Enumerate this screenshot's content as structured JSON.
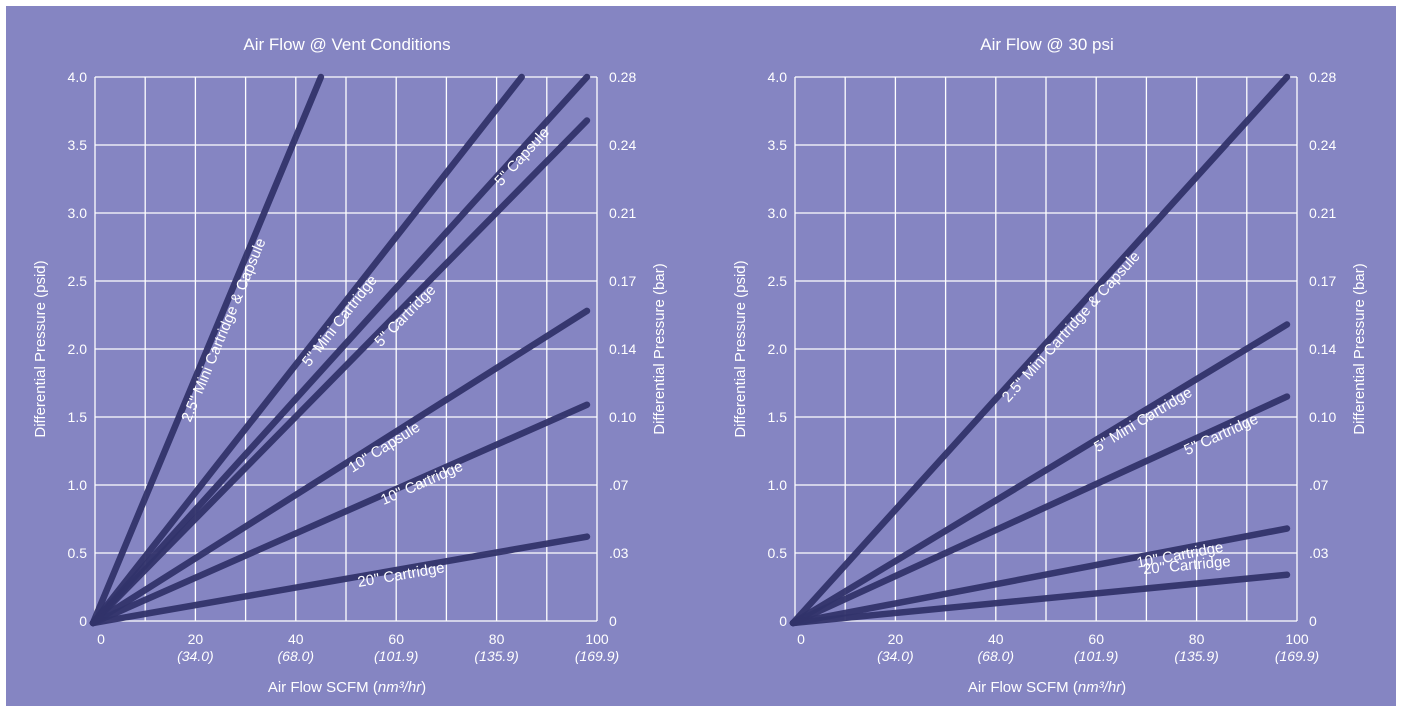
{
  "chart_data": [
    {
      "type": "line",
      "title": "Air Flow @ Vent Conditions",
      "xlabel": "Air Flow SCFM",
      "xlabel_unit": "nm³/hr",
      "ylabel": "Differential Pressure (psid)",
      "ylabel_right": "Differential Pressure (bar)",
      "xlim": [
        0,
        100
      ],
      "ylim": [
        0,
        4.0
      ],
      "grid": true,
      "x_ticks": [
        "0",
        "20",
        "40",
        "60",
        "80",
        "100"
      ],
      "x_ticks_secondary": [
        "",
        "(34.0)",
        "(68.0)",
        "(101.9)",
        "(135.9)",
        "(169.9)"
      ],
      "y_ticks": [
        "0",
        "0.5",
        "1.0",
        "1.5",
        "2.0",
        "2.5",
        "3.0",
        "3.5",
        "4.0"
      ],
      "y_ticks_right": [
        "0",
        ".03",
        ".07",
        "0.10",
        "0.14",
        "0.17",
        "0.21",
        "0.24",
        "0.28"
      ],
      "series": [
        {
          "name": "2.5\" Mini Cartridge & Capsule",
          "x": [
            0,
            45
          ],
          "y": [
            0,
            4.0
          ]
        },
        {
          "name": "5\" Mini Cartridge",
          "x": [
            0,
            85
          ],
          "y": [
            0,
            4.0
          ]
        },
        {
          "name": "5\" Capsule",
          "x": [
            0,
            98
          ],
          "y": [
            0,
            4.0
          ]
        },
        {
          "name": "5\" Cartridge",
          "x": [
            0,
            98
          ],
          "y": [
            0,
            3.68
          ]
        },
        {
          "name": "10\" Capsule",
          "x": [
            0,
            98
          ],
          "y": [
            0,
            2.28
          ]
        },
        {
          "name": "10\" Cartridge",
          "x": [
            0,
            98
          ],
          "y": [
            0,
            1.59
          ]
        },
        {
          "name": "20\" Cartridge",
          "x": [
            0,
            98
          ],
          "y": [
            0,
            0.62
          ]
        }
      ]
    },
    {
      "type": "line",
      "title": "Air Flow @ 30 psi",
      "xlabel": "Air Flow SCFM",
      "xlabel_unit": "nm³/hr",
      "ylabel": "Differential Pressure (psid)",
      "ylabel_right": "Differential Pressure (bar)",
      "xlim": [
        0,
        100
      ],
      "ylim": [
        0,
        4.0
      ],
      "grid": true,
      "x_ticks": [
        "0",
        "20",
        "40",
        "60",
        "80",
        "100"
      ],
      "x_ticks_secondary": [
        "",
        "(34.0)",
        "(68.0)",
        "(101.9)",
        "(135.9)",
        "(169.9)"
      ],
      "y_ticks": [
        "0",
        "0.5",
        "1.0",
        "1.5",
        "2.0",
        "2.5",
        "3.0",
        "3.5",
        "4.0"
      ],
      "y_ticks_right": [
        "0",
        ".03",
        ".07",
        "0.10",
        "0.14",
        "0.17",
        "0.21",
        "0.24",
        "0.28"
      ],
      "series": [
        {
          "name": "2.5\" Mini Cartridge & Capsule",
          "x": [
            0,
            98
          ],
          "y": [
            0,
            4.0
          ]
        },
        {
          "name": "5\" Mini Cartridge",
          "x": [
            0,
            98
          ],
          "y": [
            0,
            2.18
          ]
        },
        {
          "name": "5\" Cartridge",
          "x": [
            0,
            98
          ],
          "y": [
            0,
            1.65
          ]
        },
        {
          "name": "10\" Cartridge",
          "x": [
            0,
            98
          ],
          "y": [
            0,
            0.68
          ]
        },
        {
          "name": "20\" Cartridge",
          "x": [
            0,
            98
          ],
          "y": [
            0,
            0.34
          ]
        }
      ]
    }
  ],
  "colors": {
    "background": "#8585c2",
    "grid": "#ffffff",
    "series_line": "#32336a",
    "text": "#ffffff"
  }
}
